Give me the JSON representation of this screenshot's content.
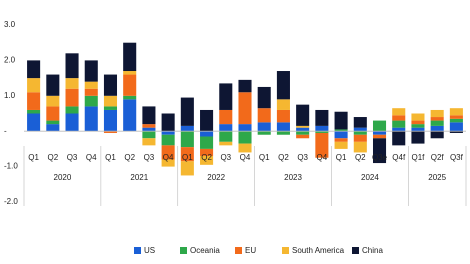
{
  "chart_data": {
    "type": "stacked-bar",
    "categories": [
      "Q1",
      "Q2",
      "Q3",
      "Q4",
      "Q1",
      "Q2",
      "Q3",
      "Q4",
      "Q1",
      "Q2",
      "Q3",
      "Q4",
      "Q1",
      "Q2",
      "Q3",
      "Q4",
      "Q1",
      "Q2",
      "Q3e",
      "Q4f",
      "Q1f",
      "Q2f",
      "Q3f"
    ],
    "years": [
      "2020",
      "2020",
      "2020",
      "2020",
      "2021",
      "2021",
      "2021",
      "2021",
      "2022",
      "2022",
      "2022",
      "2022",
      "2023",
      "2023",
      "2023",
      "2023",
      "2024",
      "2024",
      "2024",
      "2024",
      "2025",
      "2025",
      "2025"
    ],
    "series": [
      {
        "name": "US",
        "color": "#1a5fd6",
        "values": [
          0.5,
          0.2,
          0.5,
          0.7,
          0.6,
          0.9,
          0.1,
          -0.1,
          0.15,
          -0.15,
          0.2,
          0.2,
          0.25,
          0.25,
          0.1,
          0.15,
          -0.2,
          0.1,
          -0.1,
          0.1,
          0.1,
          0.15,
          0.25
        ]
      },
      {
        "name": "Oceania",
        "color": "#2ea84a",
        "values": [
          0.1,
          0.1,
          0.2,
          0.3,
          0.1,
          0.1,
          -0.2,
          -0.3,
          -0.45,
          -0.35,
          -0.3,
          -0.35,
          -0.1,
          -0.1,
          -0.1,
          -0.05,
          0.05,
          -0.1,
          0.3,
          0.2,
          0.1,
          0.15,
          0.1
        ]
      },
      {
        "name": "EU",
        "color": "#f26a1b",
        "values": [
          0.5,
          0.4,
          0.5,
          0.2,
          -0.05,
          0.6,
          0.1,
          -0.4,
          -0.4,
          -0.2,
          0.4,
          0.9,
          0.4,
          0.35,
          -0.1,
          -0.7,
          -0.1,
          -0.2,
          -0.1,
          0.15,
          0.1,
          0.1,
          0.1
        ]
      },
      {
        "name": "South America",
        "color": "#f5b731",
        "values": [
          0.4,
          0.3,
          0.3,
          0.2,
          0.3,
          0.1,
          -0.2,
          -0.2,
          -0.4,
          -0.25,
          -0.1,
          -0.25,
          0.0,
          0.3,
          0.05,
          0.0,
          -0.2,
          -0.3,
          0.0,
          0.2,
          0.2,
          0.2,
          0.2
        ]
      },
      {
        "name": "China",
        "color": "#0e1633",
        "values": [
          0.5,
          0.6,
          0.7,
          0.6,
          0.6,
          0.8,
          0.5,
          0.5,
          0.8,
          0.6,
          0.75,
          0.35,
          0.6,
          0.8,
          0.6,
          0.45,
          0.5,
          0.3,
          -0.7,
          -0.4,
          -0.35,
          -0.2,
          -0.05
        ]
      }
    ],
    "ylim": [
      -2,
      3
    ],
    "yticks": [
      {
        "value": -2,
        "label": "-2.0"
      },
      {
        "value": -1,
        "label": "-1.0"
      },
      {
        "value": 0,
        "label": "-"
      },
      {
        "value": 1,
        "label": "1.0"
      },
      {
        "value": 2,
        "label": "2.0"
      },
      {
        "value": 3,
        "label": "3.0"
      }
    ],
    "grid": false
  }
}
